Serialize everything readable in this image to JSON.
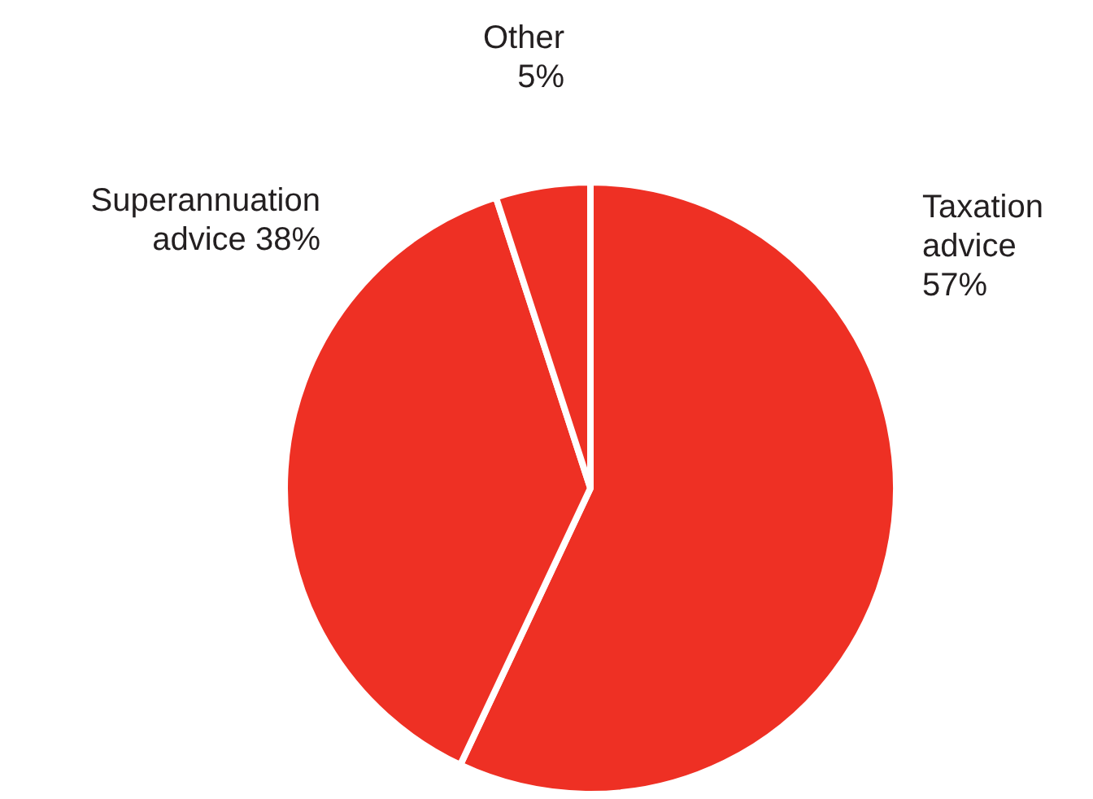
{
  "chart_data": {
    "type": "pie",
    "categories": [
      "Taxation advice",
      "Superannuation advice",
      "Other"
    ],
    "values": [
      57,
      38,
      5
    ],
    "value_labels": [
      "57%",
      "38%",
      "5%"
    ],
    "colors": [
      "#ee3024",
      "#ee3024",
      "#ee3024"
    ],
    "legend": false
  }
}
